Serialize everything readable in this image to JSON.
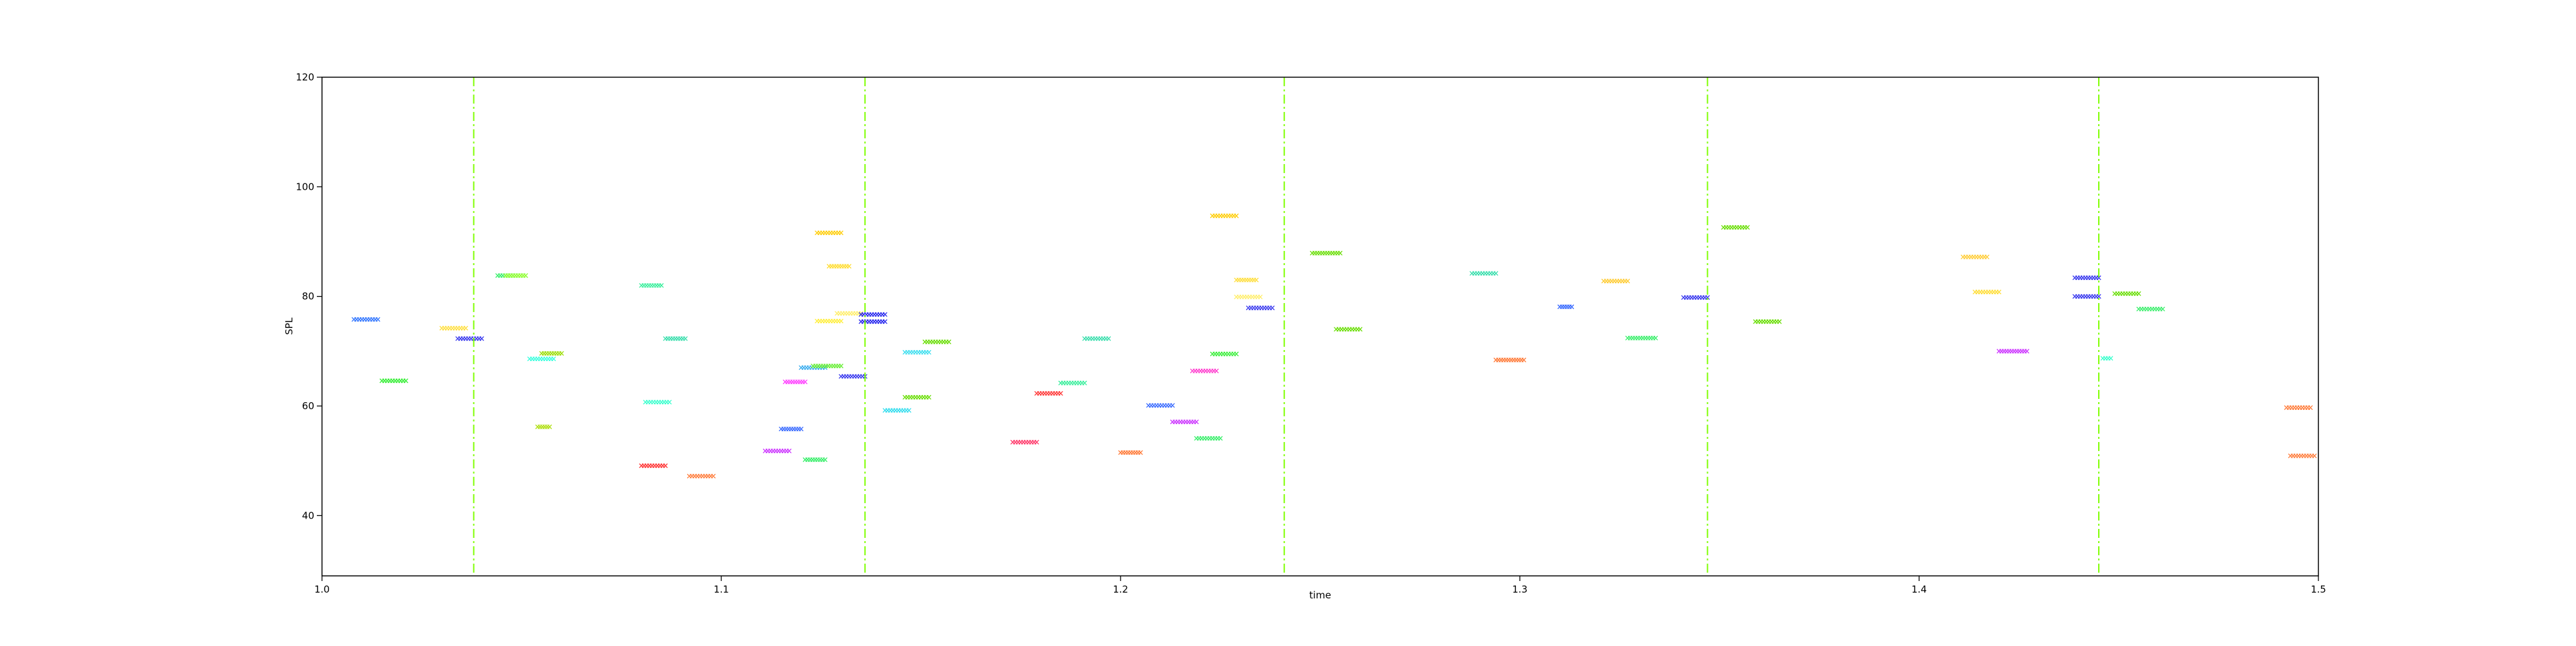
{
  "chart_data": {
    "type": "scatter",
    "xlabel": "time",
    "ylabel": "SPL",
    "xlim": [
      1.0,
      1.5
    ],
    "ylim": [
      29,
      120
    ],
    "x_ticks": [
      "1.0",
      "1.1",
      "1.2",
      "1.3",
      "1.4",
      "1.5"
    ],
    "y_ticks": [
      "40",
      "60",
      "80",
      "100",
      "120"
    ],
    "grid": false,
    "vertical_lines": [
      1.038,
      1.136,
      1.241,
      1.347,
      1.445
    ],
    "vertical_line_color": "#7fff00",
    "segments": [
      {
        "x0": 1.008,
        "x1": 1.014,
        "y": 75.8,
        "color": "#3377ff"
      },
      {
        "x0": 1.015,
        "x1": 1.021,
        "y": 64.6,
        "color": "#33ee33"
      },
      {
        "x0": 1.03,
        "x1": 1.036,
        "y": 74.2,
        "color": "#ffdd33"
      },
      {
        "x0": 1.034,
        "x1": 1.04,
        "y": 72.3,
        "color": "#3333ee"
      },
      {
        "x0": 1.044,
        "x1": 1.051,
        "y": 83.8,
        "color": "#33ee66"
      },
      {
        "x0": 1.046,
        "x1": 1.051,
        "y": 83.8,
        "color": "#99ff33"
      },
      {
        "x0": 1.052,
        "x1": 1.058,
        "y": 68.6,
        "color": "#33ffdd"
      },
      {
        "x0": 1.055,
        "x1": 1.06,
        "y": 69.6,
        "color": "#99dd00"
      },
      {
        "x0": 1.054,
        "x1": 1.057,
        "y": 56.2,
        "color": "#aadd00"
      },
      {
        "x0": 1.08,
        "x1": 1.085,
        "y": 82.0,
        "color": "#33ee99"
      },
      {
        "x0": 1.081,
        "x1": 1.087,
        "y": 60.7,
        "color": "#33ffcc"
      },
      {
        "x0": 1.086,
        "x1": 1.091,
        "y": 72.3,
        "color": "#33ddaa"
      },
      {
        "x0": 1.08,
        "x1": 1.086,
        "y": 49.1,
        "color": "#ff3333"
      },
      {
        "x0": 1.092,
        "x1": 1.098,
        "y": 47.2,
        "color": "#ff7733"
      },
      {
        "x0": 1.111,
        "x1": 1.117,
        "y": 51.8,
        "color": "#cc33ff"
      },
      {
        "x0": 1.116,
        "x1": 1.121,
        "y": 64.4,
        "color": "#ff33ff"
      },
      {
        "x0": 1.115,
        "x1": 1.12,
        "y": 55.8,
        "color": "#3366ff"
      },
      {
        "x0": 1.12,
        "x1": 1.126,
        "y": 67.0,
        "color": "#33aaee"
      },
      {
        "x0": 1.121,
        "x1": 1.126,
        "y": 50.2,
        "color": "#33ee66"
      },
      {
        "x0": 1.123,
        "x1": 1.13,
        "y": 67.3,
        "color": "#66ee33"
      },
      {
        "x0": 1.124,
        "x1": 1.13,
        "y": 91.6,
        "color": "#ffcc00"
      },
      {
        "x0": 1.124,
        "x1": 1.13,
        "y": 75.5,
        "color": "#ffee33"
      },
      {
        "x0": 1.127,
        "x1": 1.132,
        "y": 85.5,
        "color": "#ffdd33"
      },
      {
        "x0": 1.129,
        "x1": 1.135,
        "y": 76.9,
        "color": "#ffee66"
      },
      {
        "x0": 1.13,
        "x1": 1.136,
        "y": 65.4,
        "color": "#3333ee"
      },
      {
        "x0": 1.135,
        "x1": 1.141,
        "y": 76.7,
        "color": "#2222ee"
      },
      {
        "x0": 1.135,
        "x1": 1.141,
        "y": 75.4,
        "color": "#2222ee"
      },
      {
        "x0": 1.141,
        "x1": 1.147,
        "y": 59.2,
        "color": "#33ddee"
      },
      {
        "x0": 1.146,
        "x1": 1.152,
        "y": 61.6,
        "color": "#66dd00"
      },
      {
        "x0": 1.146,
        "x1": 1.152,
        "y": 69.8,
        "color": "#33ddee"
      },
      {
        "x0": 1.151,
        "x1": 1.157,
        "y": 71.7,
        "color": "#66dd00"
      },
      {
        "x0": 1.173,
        "x1": 1.179,
        "y": 53.4,
        "color": "#ff3366"
      },
      {
        "x0": 1.179,
        "x1": 1.185,
        "y": 62.3,
        "color": "#ff3333"
      },
      {
        "x0": 1.185,
        "x1": 1.191,
        "y": 64.2,
        "color": "#33ee99"
      },
      {
        "x0": 1.191,
        "x1": 1.197,
        "y": 72.3,
        "color": "#33ddaa"
      },
      {
        "x0": 1.2,
        "x1": 1.205,
        "y": 51.5,
        "color": "#ff7733"
      },
      {
        "x0": 1.207,
        "x1": 1.213,
        "y": 60.1,
        "color": "#3366ff"
      },
      {
        "x0": 1.213,
        "x1": 1.219,
        "y": 57.1,
        "color": "#cc33ff"
      },
      {
        "x0": 1.218,
        "x1": 1.224,
        "y": 66.4,
        "color": "#ff33cc"
      },
      {
        "x0": 1.219,
        "x1": 1.225,
        "y": 54.1,
        "color": "#33ee66"
      },
      {
        "x0": 1.223,
        "x1": 1.229,
        "y": 69.5,
        "color": "#33ee33"
      },
      {
        "x0": 1.223,
        "x1": 1.229,
        "y": 94.7,
        "color": "#ffcc00"
      },
      {
        "x0": 1.229,
        "x1": 1.234,
        "y": 83.0,
        "color": "#ffdd33"
      },
      {
        "x0": 1.229,
        "x1": 1.235,
        "y": 79.9,
        "color": "#ffee66"
      },
      {
        "x0": 1.232,
        "x1": 1.238,
        "y": 77.9,
        "color": "#3333ee"
      },
      {
        "x0": 1.248,
        "x1": 1.255,
        "y": 87.9,
        "color": "#66dd00"
      },
      {
        "x0": 1.254,
        "x1": 1.26,
        "y": 74.0,
        "color": "#66dd00"
      },
      {
        "x0": 1.288,
        "x1": 1.294,
        "y": 84.2,
        "color": "#33ddaa"
      },
      {
        "x0": 1.294,
        "x1": 1.301,
        "y": 68.4,
        "color": "#ff7733"
      },
      {
        "x0": 1.31,
        "x1": 1.313,
        "y": 78.1,
        "color": "#3366ff"
      },
      {
        "x0": 1.321,
        "x1": 1.327,
        "y": 82.8,
        "color": "#ffcc33"
      },
      {
        "x0": 1.327,
        "x1": 1.334,
        "y": 72.4,
        "color": "#33ee66"
      },
      {
        "x0": 1.341,
        "x1": 1.347,
        "y": 79.8,
        "color": "#3333ee"
      },
      {
        "x0": 1.351,
        "x1": 1.357,
        "y": 92.6,
        "color": "#66dd00"
      },
      {
        "x0": 1.359,
        "x1": 1.365,
        "y": 75.4,
        "color": "#66dd00"
      },
      {
        "x0": 1.411,
        "x1": 1.417,
        "y": 87.2,
        "color": "#ffcc33"
      },
      {
        "x0": 1.414,
        "x1": 1.42,
        "y": 80.8,
        "color": "#ffdd33"
      },
      {
        "x0": 1.42,
        "x1": 1.427,
        "y": 70.0,
        "color": "#cc33ff"
      },
      {
        "x0": 1.439,
        "x1": 1.445,
        "y": 83.4,
        "color": "#3333ee"
      },
      {
        "x0": 1.439,
        "x1": 1.445,
        "y": 80.0,
        "color": "#3333ee"
      },
      {
        "x0": 1.446,
        "x1": 1.448,
        "y": 68.7,
        "color": "#33ffcc"
      },
      {
        "x0": 1.449,
        "x1": 1.455,
        "y": 80.5,
        "color": "#66dd00"
      },
      {
        "x0": 1.455,
        "x1": 1.461,
        "y": 77.7,
        "color": "#33ee66"
      },
      {
        "x0": 1.492,
        "x1": 1.498,
        "y": 59.7,
        "color": "#ff7733"
      },
      {
        "x0": 1.493,
        "x1": 1.499,
        "y": 50.9,
        "color": "#ff7733"
      }
    ]
  }
}
